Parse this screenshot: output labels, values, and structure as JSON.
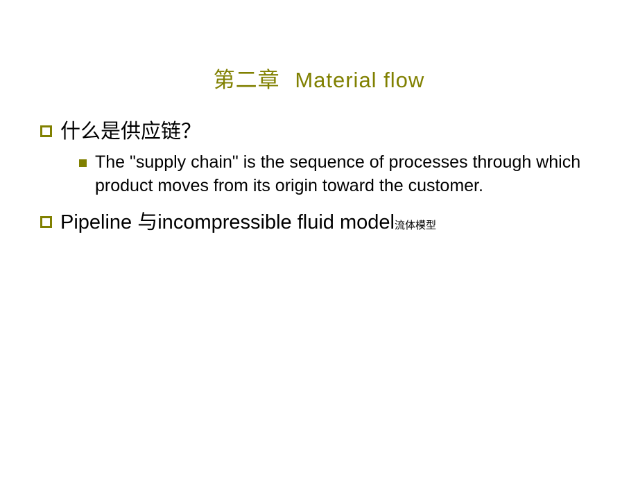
{
  "title": {
    "cn": "第二章",
    "en": "Material flow"
  },
  "bullets": {
    "item1": {
      "text": "什么是供应链？",
      "sub": "The \"supply chain\" is the sequence of processes through which product moves from its origin toward the customer."
    },
    "item2": {
      "text": "Pipeline 与incompressible fluid model",
      "annotation": "流体模型"
    }
  },
  "colors": {
    "accent": "#808000",
    "text": "#000000",
    "background": "#ffffff"
  }
}
